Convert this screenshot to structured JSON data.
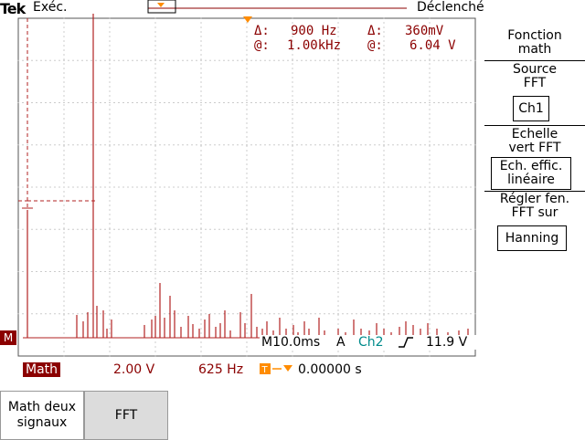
{
  "header": {
    "brand": "Tek",
    "run_state": "Exéc.",
    "trigger_status": "Déclenché"
  },
  "cursor_readout": {
    "delta_x_symbol": "Δ:",
    "delta_x": "900 Hz",
    "delta_y_symbol": "Δ:",
    "delta_y": "360mV",
    "at_x_symbol": "@:",
    "at_x": "1.00kHz",
    "at_y_symbol": "@:",
    "at_y": "6.04 V"
  },
  "status_line": {
    "timebase": "M10.0ms",
    "trigger_mode": "A",
    "trigger_source": "Ch2",
    "trigger_level": "11.9 V"
  },
  "bottom_status": {
    "math_label": "Math",
    "volts_per_div": "2.00 V",
    "freq_per_div": "625 Hz",
    "trigger_position": "0.00000 s"
  },
  "markers": {
    "math_marker": "M"
  },
  "side_menu": {
    "title_line1": "Fonction",
    "title_line2": "math",
    "source_label_1": "Source",
    "source_label_2": "FFT",
    "source_value": "Ch1",
    "scale_label_1": "Echelle",
    "scale_label_2": "vert FFT",
    "scale_value_1": "Ech. effic.",
    "scale_value_2": "linéaire",
    "window_label_1": "Régler fen.",
    "window_label_2": "FFT sur",
    "window_value": "Hanning"
  },
  "bottom_menu": {
    "dual_label_1": "Math deux",
    "dual_label_2": "signaux",
    "fft_label": "FFT"
  },
  "colors": {
    "trace": "#b22222",
    "text_dark": "#8b0000",
    "trigger_orange": "#ff8c00",
    "ch2_teal": "#008b8b",
    "grid": "#9a9a9a"
  }
}
